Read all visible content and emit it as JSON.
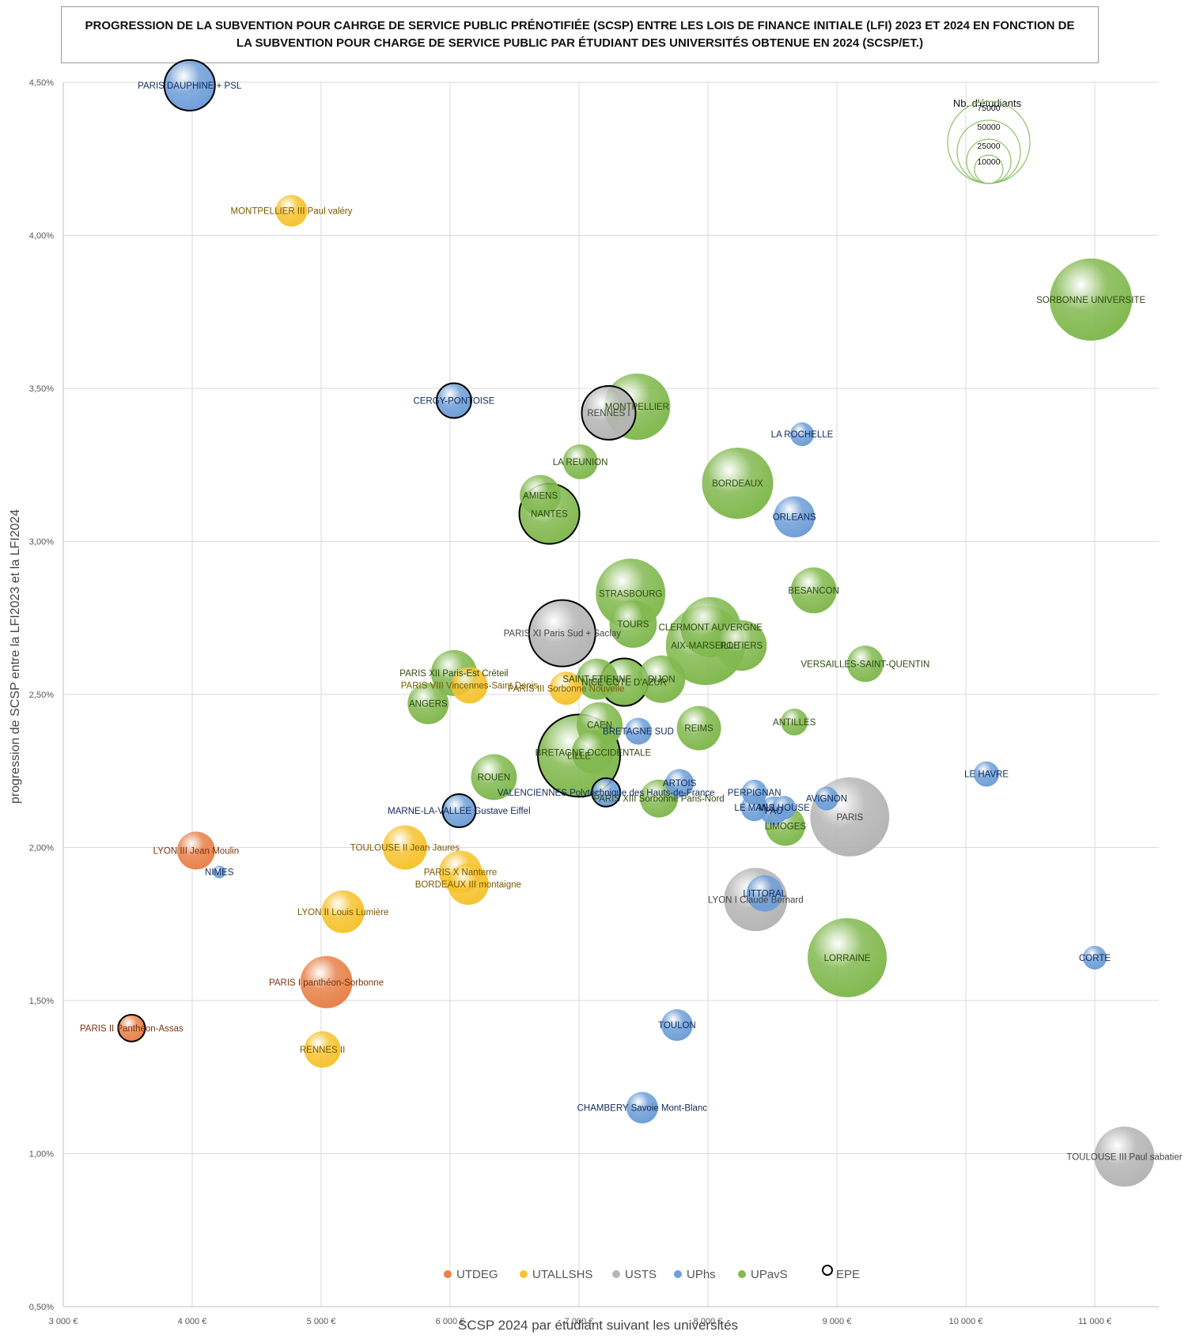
{
  "chart_data": {
    "type": "scatter",
    "title": "PROGRESSION DE LA SUBVENTION POUR CAHRGE DE SERVICE PUBLIC PRÉNOTIFIÉE (SCSP)  ENTRE LES LOIS DE FINANCE INITIALE (LFI) 2023 ET 2024 EN FONCTION DE LA SUBVENTION POUR CHARGE DE SERVICE PUBLIC PAR ÉTUDIANT DES UNIVERSITÉS OBTENUE EN 2024 (SCSP/ET.)",
    "xlabel": "SCSP 2024 par étudiant suivant les universités",
    "ylabel": "progression de SCSP entre la LFI2023 et la LFI2024",
    "xlim": [
      3000,
      11500
    ],
    "ylim": [
      0.5,
      4.5
    ],
    "x_ticks": [
      "3 000 €",
      "4 000 €",
      "5 000 €",
      "6 000 €",
      "7 000 €",
      "8 000 €",
      "9 000 €",
      "10 000 €",
      "11 000 €"
    ],
    "y_ticks": [
      "0,50%",
      "1,00%",
      "1,50%",
      "2,00%",
      "2,50%",
      "3,00%",
      "3,50%",
      "4,00%",
      "4,50%"
    ],
    "grid": true,
    "legend": {
      "placement": "bottom",
      "entries": [
        {
          "name": "UTDEG",
          "color": "#e8824b"
        },
        {
          "name": "UTALLSHS",
          "color": "#f6c330"
        },
        {
          "name": "USTS",
          "color": "#b5b5b5"
        },
        {
          "name": "UPhs",
          "color": "#6f9fd8"
        },
        {
          "name": "UPavS",
          "color": "#82b950"
        },
        {
          "name": "EPE",
          "color": "#000000"
        }
      ]
    },
    "size_legend": {
      "title": "Nb. d'étudiants",
      "values": [
        "75000",
        "50000",
        "25000",
        "10000"
      ]
    },
    "groups": {
      "UTDEG": {
        "color": "#e8824b",
        "label_color": "#7a3410"
      },
      "UTALLSHS": {
        "color": "#f6c330",
        "label_color": "#7a5a00"
      },
      "USTS": {
        "color": "#b5b5b5",
        "label_color": "#444444"
      },
      "UPhs": {
        "color": "#6f9fd8",
        "label_color": "#102a5a"
      },
      "UPavS": {
        "color": "#82b950",
        "label_color": "#2f4a12"
      }
    },
    "points": [
      {
        "label": "PARIS DAUPHINE + PSL",
        "group": "UPhs",
        "x": 3980,
        "y": 4.49,
        "r": 32,
        "epe": true
      },
      {
        "label": "MONTPELLIER III Paul valéry",
        "group": "UTALLSHS",
        "x": 4770,
        "y": 4.08,
        "r": 20
      },
      {
        "label": "SORBONNE UNIVERSITE",
        "group": "UPavS",
        "x": 10970,
        "y": 3.79,
        "r": 52
      },
      {
        "label": "CERGY-PONTOISE",
        "group": "UPhs",
        "x": 6030,
        "y": 3.46,
        "r": 22,
        "epe": true
      },
      {
        "label": "MONTPELLIER",
        "group": "UPavS",
        "x": 7450,
        "y": 3.44,
        "r": 42
      },
      {
        "label": "RENNES I",
        "group": "USTS",
        "x": 7230,
        "y": 3.42,
        "r": 34,
        "epe": true
      },
      {
        "label": "LA ROCHELLE",
        "group": "UPhs",
        "x": 8730,
        "y": 3.35,
        "r": 15
      },
      {
        "label": "LA REUNION",
        "group": "UPavS",
        "x": 7010,
        "y": 3.26,
        "r": 22
      },
      {
        "label": "BORDEAUX",
        "group": "UPavS",
        "x": 8230,
        "y": 3.19,
        "r": 45
      },
      {
        "label": "AMIENS",
        "group": "UPavS",
        "x": 6700,
        "y": 3.15,
        "r": 26
      },
      {
        "label": "NANTES",
        "group": "UPavS",
        "x": 6770,
        "y": 3.09,
        "r": 38,
        "epe": true
      },
      {
        "label": "ORLEANS",
        "group": "UPhs",
        "x": 8670,
        "y": 3.08,
        "r": 26
      },
      {
        "label": "BESANCON",
        "group": "UPavS",
        "x": 8820,
        "y": 2.84,
        "r": 29
      },
      {
        "label": "STRASBOURG",
        "group": "UPavS",
        "x": 7400,
        "y": 2.83,
        "r": 44
      },
      {
        "label": "TOURS",
        "group": "UPavS",
        "x": 7420,
        "y": 2.73,
        "r": 30
      },
      {
        "label": "CLERMONT AUVERGNE",
        "group": "UPavS",
        "x": 8020,
        "y": 2.72,
        "r": 38
      },
      {
        "label": "PARIS XI Paris Sud + Saclay",
        "group": "USTS",
        "x": 6870,
        "y": 2.7,
        "r": 42,
        "epe": true
      },
      {
        "label": "AIX-MARSEILLE",
        "group": "UPavS",
        "x": 7980,
        "y": 2.66,
        "r": 50
      },
      {
        "label": "POITIERS",
        "group": "UPavS",
        "x": 8260,
        "y": 2.66,
        "r": 32
      },
      {
        "label": "VERSAILLES-SAINT-QUENTIN",
        "group": "UPavS",
        "x": 9220,
        "y": 2.6,
        "r": 23
      },
      {
        "label": "PARIS XII Paris-Est Créteil",
        "group": "UPavS",
        "x": 6030,
        "y": 2.57,
        "r": 29
      },
      {
        "label": "PARIS VIII Vincennes-Saint Denis",
        "group": "UTALLSHS",
        "x": 6150,
        "y": 2.53,
        "r": 23
      },
      {
        "label": "SAINT-ETIENNE",
        "group": "UPavS",
        "x": 7140,
        "y": 2.55,
        "r": 26
      },
      {
        "label": "NICE COTE D'AZUR",
        "group": "UPavS",
        "x": 7350,
        "y": 2.54,
        "r": 30,
        "epe": true
      },
      {
        "label": "DIJON",
        "group": "UPavS",
        "x": 7640,
        "y": 2.55,
        "r": 30
      },
      {
        "label": "PARIS III Sorbonne Nouvelle",
        "group": "UTALLSHS",
        "x": 6900,
        "y": 2.52,
        "r": 21
      },
      {
        "label": "ANGERS",
        "group": "UPavS",
        "x": 5830,
        "y": 2.47,
        "r": 26
      },
      {
        "label": "CAEN",
        "group": "UPavS",
        "x": 7160,
        "y": 2.4,
        "r": 29
      },
      {
        "label": "ANTILLES",
        "group": "UPavS",
        "x": 8670,
        "y": 2.41,
        "r": 17
      },
      {
        "label": "BRETAGNE SUD",
        "group": "UPhs",
        "x": 7460,
        "y": 2.38,
        "r": 17
      },
      {
        "label": "REIMS",
        "group": "UPavS",
        "x": 7930,
        "y": 2.39,
        "r": 28
      },
      {
        "label": "BRETAGNE OCCIDENTALE",
        "group": "UPavS",
        "x": 7110,
        "y": 2.31,
        "r": 27
      },
      {
        "label": "LILLE",
        "group": "UPavS",
        "x": 7000,
        "y": 2.3,
        "r": 52,
        "epe": true
      },
      {
        "label": "LE HAVRE",
        "group": "UPhs",
        "x": 10160,
        "y": 2.24,
        "r": 16
      },
      {
        "label": "ROUEN",
        "group": "UPavS",
        "x": 6340,
        "y": 2.23,
        "r": 29
      },
      {
        "label": "ARTOIS",
        "group": "UPhs",
        "x": 7780,
        "y": 2.21,
        "r": 18
      },
      {
        "label": "VALENCIENNES Polytechnique des Hauts-de-France",
        "group": "UPhs",
        "x": 7210,
        "y": 2.18,
        "r": 18,
        "epe": true
      },
      {
        "label": "PARIS XIII Sorbonne Paris-Nord",
        "group": "UPavS",
        "x": 7620,
        "y": 2.16,
        "r": 24
      },
      {
        "label": "PERPIGNAN",
        "group": "UPhs",
        "x": 8360,
        "y": 2.18,
        "r": 16
      },
      {
        "label": "MULHOUSE",
        "group": "UPhs",
        "x": 8590,
        "y": 2.13,
        "r": 15
      },
      {
        "label": "AVIGNON",
        "group": "UPhs",
        "x": 8920,
        "y": 2.16,
        "r": 15
      },
      {
        "label": "MARNE-LA-VALLEE Gustave Eiffel",
        "group": "UPhs",
        "x": 6070,
        "y": 2.12,
        "r": 21,
        "epe": true
      },
      {
        "label": "LE MANS",
        "group": "UPhs",
        "x": 8360,
        "y": 2.13,
        "r": 17
      },
      {
        "label": "PAU",
        "group": "UPhs",
        "x": 8510,
        "y": 2.12,
        "r": 18
      },
      {
        "label": "PARIS",
        "group": "USTS",
        "x": 9100,
        "y": 2.1,
        "r": 50
      },
      {
        "label": "LIMOGES",
        "group": "UPavS",
        "x": 8600,
        "y": 2.07,
        "r": 25
      },
      {
        "label": "LYON III Jean Moulin",
        "group": "UTDEG",
        "x": 4030,
        "y": 1.99,
        "r": 24
      },
      {
        "label": "TOULOUSE II Jean Jaures",
        "group": "UTALLSHS",
        "x": 5650,
        "y": 2.0,
        "r": 28
      },
      {
        "label": "NIMES",
        "group": "UPhs",
        "x": 4210,
        "y": 1.92,
        "r": 8
      },
      {
        "label": "PARIS X Nanterre",
        "group": "UTALLSHS",
        "x": 6080,
        "y": 1.92,
        "r": 27
      },
      {
        "label": "BORDEAUX III montaigne",
        "group": "UTALLSHS",
        "x": 6140,
        "y": 1.88,
        "r": 26
      },
      {
        "label": "LITTORAL",
        "group": "UPhs",
        "x": 8440,
        "y": 1.85,
        "r": 23
      },
      {
        "label": "LYON I Claude Bernard",
        "group": "USTS",
        "x": 8370,
        "y": 1.83,
        "r": 40
      },
      {
        "label": "LYON II Louis Lumière",
        "group": "UTALLSHS",
        "x": 5170,
        "y": 1.79,
        "r": 27
      },
      {
        "label": "LORRAINE",
        "group": "UPavS",
        "x": 9080,
        "y": 1.64,
        "r": 50
      },
      {
        "label": "CORTE",
        "group": "UPhs",
        "x": 11000,
        "y": 1.64,
        "r": 15
      },
      {
        "label": "PARIS I panthéon-Sorbonne",
        "group": "UTDEG",
        "x": 5040,
        "y": 1.56,
        "r": 33
      },
      {
        "label": "TOULON",
        "group": "UPhs",
        "x": 7760,
        "y": 1.42,
        "r": 20
      },
      {
        "label": "PARIS II Panthéon-Assas",
        "group": "UTDEG",
        "x": 3530,
        "y": 1.41,
        "r": 17,
        "epe": true
      },
      {
        "label": "RENNES II",
        "group": "UTALLSHS",
        "x": 5010,
        "y": 1.34,
        "r": 23
      },
      {
        "label": "CHAMBERY Savoie Mont-Blanc",
        "group": "UPhs",
        "x": 7490,
        "y": 1.15,
        "r": 20
      },
      {
        "label": "TOULOUSE III Paul sabatier",
        "group": "USTS",
        "x": 11230,
        "y": 0.99,
        "r": 38
      }
    ]
  }
}
